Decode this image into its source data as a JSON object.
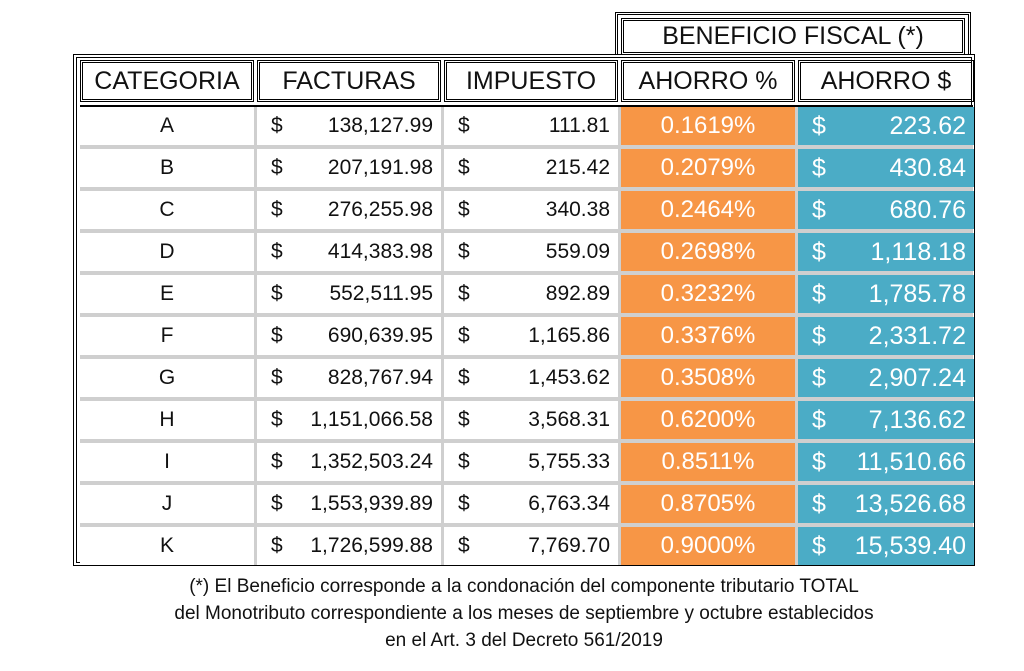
{
  "header": {
    "group": "BENEFICIO FISCAL (*)",
    "columns": [
      "CATEGORIA",
      "FACTURAS",
      "IMPUESTO",
      "AHORRO %",
      "AHORRO $"
    ]
  },
  "currency_symbol": "$",
  "colors": {
    "ahorro_pct": "#F79646",
    "ahorro_usd": "#4BACC6"
  },
  "rows": [
    {
      "cat": "A",
      "facturas": "138,127.99",
      "impuesto": "111.81",
      "pct": "0.1619%",
      "ahorro": "223.62"
    },
    {
      "cat": "B",
      "facturas": "207,191.98",
      "impuesto": "215.42",
      "pct": "0.2079%",
      "ahorro": "430.84"
    },
    {
      "cat": "C",
      "facturas": "276,255.98",
      "impuesto": "340.38",
      "pct": "0.2464%",
      "ahorro": "680.76"
    },
    {
      "cat": "D",
      "facturas": "414,383.98",
      "impuesto": "559.09",
      "pct": "0.2698%",
      "ahorro": "1,118.18"
    },
    {
      "cat": "E",
      "facturas": "552,511.95",
      "impuesto": "892.89",
      "pct": "0.3232%",
      "ahorro": "1,785.78"
    },
    {
      "cat": "F",
      "facturas": "690,639.95",
      "impuesto": "1,165.86",
      "pct": "0.3376%",
      "ahorro": "2,331.72"
    },
    {
      "cat": "G",
      "facturas": "828,767.94",
      "impuesto": "1,453.62",
      "pct": "0.3508%",
      "ahorro": "2,907.24"
    },
    {
      "cat": "H",
      "facturas": "1,151,066.58",
      "impuesto": "3,568.31",
      "pct": "0.6200%",
      "ahorro": "7,136.62"
    },
    {
      "cat": "I",
      "facturas": "1,352,503.24",
      "impuesto": "5,755.33",
      "pct": "0.8511%",
      "ahorro": "11,510.66"
    },
    {
      "cat": "J",
      "facturas": "1,553,939.89",
      "impuesto": "6,763.34",
      "pct": "0.8705%",
      "ahorro": "13,526.68"
    },
    {
      "cat": "K",
      "facturas": "1,726,599.88",
      "impuesto": "7,769.70",
      "pct": "0.9000%",
      "ahorro": "15,539.40"
    }
  ],
  "footnote": [
    "(*) El Beneficio corresponde a la condonación del componente tributario TOTAL",
    "del Monotributo correspondiente a los meses de septiembre y octubre establecidos",
    "en el Art. 3 del Decreto 561/2019"
  ]
}
